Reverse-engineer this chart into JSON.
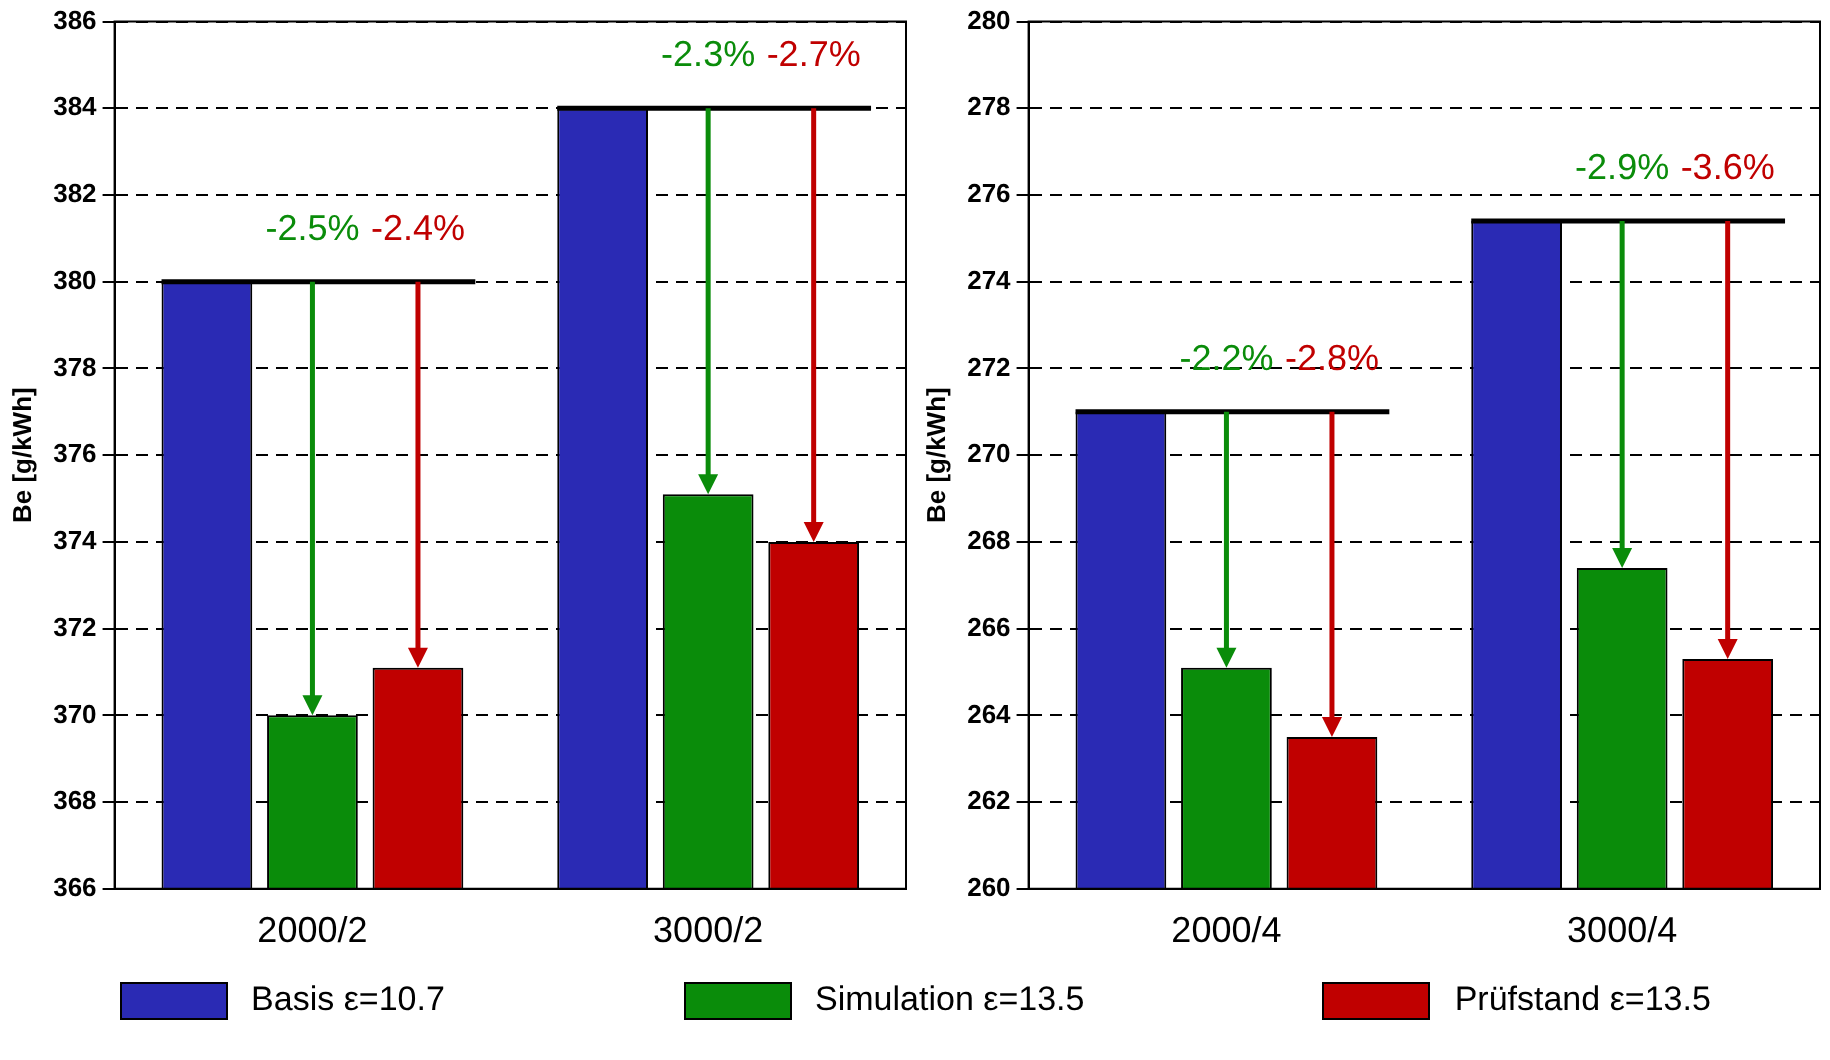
{
  "chart_data": [
    {
      "type": "bar",
      "ylabel": "Be [g/kWh]",
      "categories": [
        "2000/2",
        "3000/2"
      ],
      "ylim": [
        366,
        386
      ],
      "yticks": [
        366,
        368,
        370,
        372,
        374,
        376,
        378,
        380,
        382,
        384,
        386
      ],
      "grid": "y",
      "legend": "bottom",
      "series": [
        {
          "name": "Basis ε=10.7",
          "color": "#2a2ab4",
          "values": [
            380,
            384
          ]
        },
        {
          "name": "Simulation ε=13.5",
          "color": "#0a8c0a",
          "values": [
            370,
            375.1
          ]
        },
        {
          "name": "Prüfstand ε=13.5",
          "color": "#c00000",
          "values": [
            371.1,
            374
          ]
        }
      ],
      "annotations": [
        {
          "text": "-2.5%",
          "x": "2000/2",
          "y": 370
        },
        {
          "text": "-2.4%",
          "y": 371.1
        },
        {
          "text": "-2.3%",
          "x": "3000/2",
          "y": 375.1
        },
        {
          "text": "-2.7%",
          "y": 374
        }
      ]
    },
    {
      "type": "bar",
      "ylabel": "Be [g/kWh]",
      "categories": [
        "2000/4",
        "3000/4"
      ],
      "ylim": [
        260,
        280
      ],
      "yticks": [
        260,
        262,
        264,
        266,
        268,
        270,
        272,
        274,
        276,
        278,
        280
      ],
      "grid": "y",
      "legend": "bottom",
      "series": [
        {
          "name": "Basis ε=10.7",
          "color": "#2a2ab4",
          "values": [
            271,
            275.4
          ]
        },
        {
          "name": "Simulation ε=13.5",
          "color": "#0a8c0a",
          "values": [
            265.1,
            267.4
          ]
        },
        {
          "name": "Prüfstand ε=13.5",
          "color": "#c00000",
          "values": [
            263.5,
            265.3
          ]
        }
      ],
      "annotations": [
        {
          "text": "-2.2%",
          "x": "2000/4",
          "y": 265.1
        },
        {
          "text": "-2.8%",
          "y": 263.5
        },
        {
          "text": "-2.9%",
          "x": "3000/4",
          "y": 267.4
        },
        {
          "text": "-3.6%",
          "y": 265.3
        }
      ]
    }
  ]
}
